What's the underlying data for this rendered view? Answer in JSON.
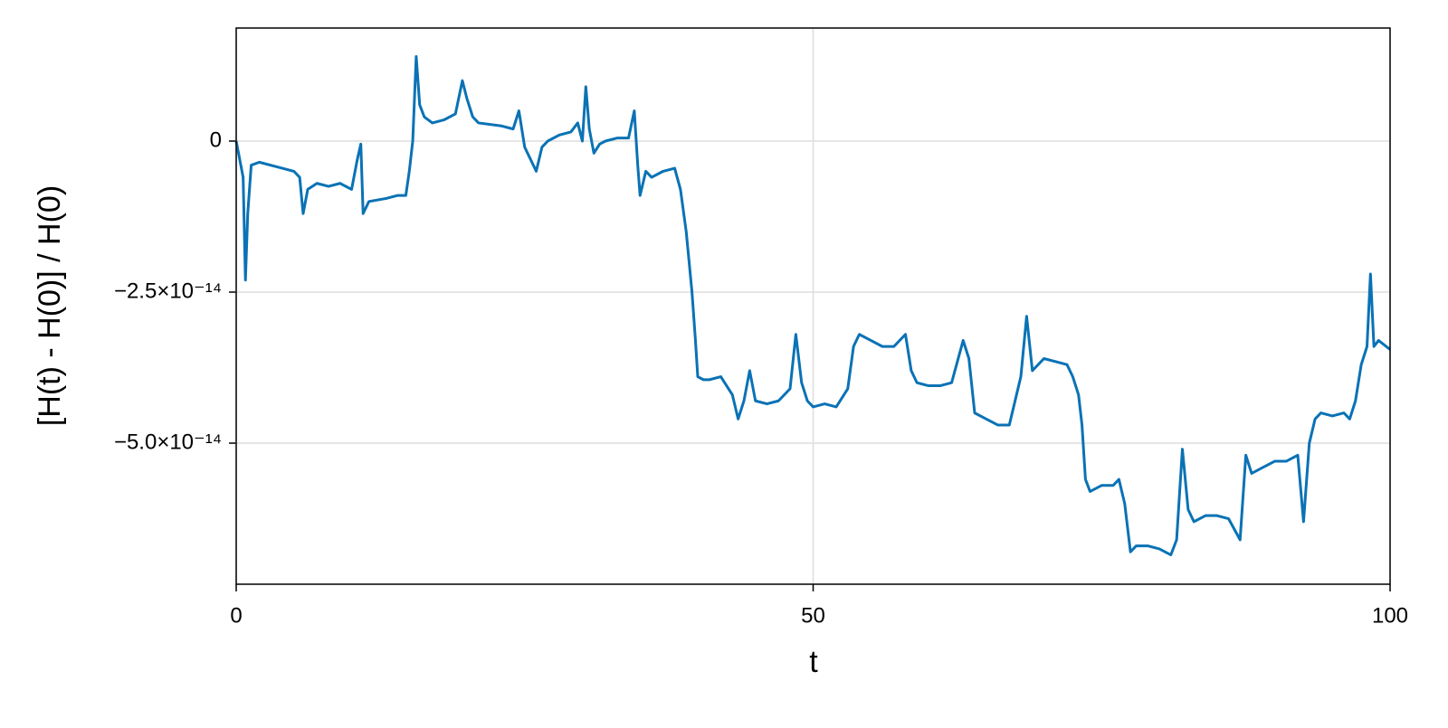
{
  "chart_data": {
    "type": "line",
    "xlabel": "t",
    "ylabel": "[H(t) - H(0)] / H(0)",
    "xlim": [
      0,
      100
    ],
    "xticks": [
      0,
      50,
      100
    ],
    "ylim": [
      1.871e-14,
      -7.335e-14
    ],
    "yticks": [
      0,
      {
        "value": -2.5e-14,
        "label": "−2.5×10⁻¹⁴"
      },
      {
        "value": -5e-14,
        "label": "−5.0×10⁻¹⁴"
      }
    ],
    "grid": true,
    "x": [
      0,
      0.3,
      0.6,
      0.8,
      1.0,
      1.3,
      2,
      4,
      5,
      5.5,
      5.8,
      6.2,
      7,
      8,
      9,
      10,
      10.5,
      10.8,
      11,
      11.5,
      13,
      14,
      14.7,
      15,
      15.3,
      15.6,
      15.9,
      16.3,
      17,
      18,
      19,
      19.6,
      20,
      20.5,
      21,
      23,
      24,
      24.5,
      25,
      25.5,
      26,
      26.5,
      27,
      28,
      29,
      29.6,
      30,
      30.3,
      30.6,
      31,
      31.5,
      32,
      33,
      34,
      34.5,
      34.8,
      35,
      35.5,
      36,
      37,
      38,
      38.5,
      39,
      39.5,
      39.8,
      40,
      40.5,
      41,
      42,
      43,
      43.5,
      44,
      44.5,
      45,
      46,
      47,
      48,
      48.5,
      49,
      49.5,
      50,
      51,
      52,
      53,
      53.5,
      54,
      55,
      56,
      57,
      58,
      58.5,
      59,
      60,
      61,
      62,
      63,
      63.5,
      64,
      65,
      66,
      67,
      67.5,
      68,
      68.5,
      69,
      69.5,
      70,
      71,
      72,
      72.5,
      73,
      73.3,
      73.6,
      74,
      75,
      76,
      76.5,
      77,
      77.5,
      78,
      79,
      80,
      81,
      81.5,
      82,
      82.5,
      83,
      84,
      85,
      86,
      87,
      87.5,
      88,
      89,
      90,
      91,
      92,
      92.5,
      93,
      93.5,
      94,
      95,
      96,
      96.5,
      97,
      97.5,
      98,
      98.3,
      98.6,
      99,
      100
    ],
    "series": [
      {
        "color": "#0a72b5",
        "values": [
          0,
          -3e-15,
          -6e-15,
          -2.3e-14,
          -1.2e-14,
          -4e-15,
          -3.5e-15,
          -4.5e-15,
          -5e-15,
          -6e-15,
          -1.2e-14,
          -8e-15,
          -7e-15,
          -7.5e-15,
          -7e-15,
          -8e-15,
          -3e-15,
          -5e-16,
          -1.2e-14,
          -1e-14,
          -9.5e-15,
          -9e-15,
          -9e-15,
          -5e-15,
          0,
          1.4e-14,
          6e-15,
          4e-15,
          3e-15,
          3.5e-15,
          4.5e-15,
          1e-14,
          7e-15,
          4e-15,
          3e-15,
          2.5e-15,
          2e-15,
          5e-15,
          -1e-15,
          -3e-15,
          -5e-15,
          -1e-15,
          0,
          1e-15,
          1.5e-15,
          3e-15,
          0,
          9e-15,
          2e-15,
          -2e-15,
          -5e-16,
          0,
          5e-16,
          5e-16,
          5e-15,
          -4e-15,
          -9e-15,
          -5e-15,
          -6e-15,
          -5e-15,
          -4.5e-15,
          -8e-15,
          -1.5e-14,
          -2.5e-14,
          -3.3e-14,
          -3.9e-14,
          -3.95e-14,
          -3.95e-14,
          -3.9e-14,
          -4.2e-14,
          -4.6e-14,
          -4.3e-14,
          -3.8e-14,
          -4.3e-14,
          -4.35e-14,
          -4.3e-14,
          -4.1e-14,
          -3.2e-14,
          -4e-14,
          -4.3e-14,
          -4.4e-14,
          -4.35e-14,
          -4.4e-14,
          -4.1e-14,
          -3.4e-14,
          -3.2e-14,
          -3.3e-14,
          -3.4e-14,
          -3.4e-14,
          -3.2e-14,
          -3.8e-14,
          -4e-14,
          -4.05e-14,
          -4.05e-14,
          -4e-14,
          -3.3e-14,
          -3.6e-14,
          -4.5e-14,
          -4.6e-14,
          -4.7e-14,
          -4.7e-14,
          -4.3e-14,
          -3.9e-14,
          -2.9e-14,
          -3.8e-14,
          -3.7e-14,
          -3.6e-14,
          -3.65e-14,
          -3.7e-14,
          -3.9e-14,
          -4.2e-14,
          -4.7e-14,
          -5.6e-14,
          -5.8e-14,
          -5.7e-14,
          -5.7e-14,
          -5.6e-14,
          -6e-14,
          -6.8e-14,
          -6.7e-14,
          -6.7e-14,
          -6.75e-14,
          -6.85e-14,
          -6.6e-14,
          -5.1e-14,
          -6.1e-14,
          -6.3e-14,
          -6.2e-14,
          -6.2e-14,
          -6.25e-14,
          -6.6e-14,
          -5.2e-14,
          -5.5e-14,
          -5.4e-14,
          -5.3e-14,
          -5.3e-14,
          -5.2e-14,
          -6.3e-14,
          -5e-14,
          -4.6e-14,
          -4.5e-14,
          -4.55e-14,
          -4.5e-14,
          -4.6e-14,
          -4.3e-14,
          -3.7e-14,
          -3.4e-14,
          -2.2e-14,
          -3.4e-14,
          -3.3e-14,
          -3.45e-14
        ]
      }
    ]
  }
}
